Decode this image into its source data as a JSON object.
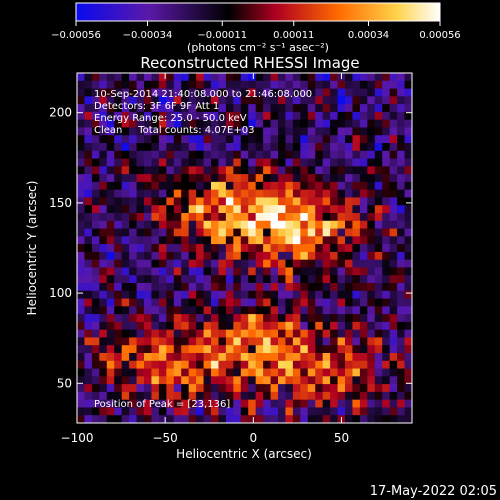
{
  "chart_data": {
    "type": "heatmap",
    "title": "Reconstructed RHESSI Image",
    "xlabel": "Heliocentric X (arcsec)",
    "ylabel": "Heliocentric Y (arcsec)",
    "xlim": [
      -100,
      90
    ],
    "ylim": [
      28,
      222
    ],
    "x_ticks": [
      -100,
      -50,
      0,
      50
    ],
    "y_ticks": [
      50,
      100,
      150,
      200
    ],
    "x_tick_labels": [
      "−100",
      "−50",
      "0",
      "50"
    ],
    "y_tick_labels": [
      "50",
      "100",
      "150",
      "200"
    ],
    "colorbar": {
      "range": [
        -0.00056,
        0.00056
      ],
      "ticks": [
        -0.00056,
        -0.00034,
        -0.00011,
        0.00011,
        0.00034,
        0.00056
      ],
      "tick_labels": [
        "−0.00056",
        "−0.00034",
        "−0.00011",
        "0.00011",
        "0.00034",
        "0.00056"
      ],
      "units_label": "(photons cm⁻² s⁻¹ asec⁻²)",
      "colormap": [
        "#0a0af0",
        "#5a18a8",
        "#000000",
        "#b00020",
        "#ff6a00",
        "#ffd24a",
        "#ffffff"
      ]
    },
    "annotations": [
      "10-Sep-2014 21:40:08.000 to 21:46:08.000",
      "Detectors: 3F 6F 9F  Att 1",
      "Energy Range: 25.0 - 50.0 keV",
      "Clean     Total counts: 4.07E+03"
    ],
    "peak_label": "Position of Peak = [23,136]",
    "peak": {
      "x": 23,
      "y": 136
    },
    "emission_regions": [
      {
        "x": 23,
        "y": 136,
        "strength": 1.0
      },
      {
        "x": -20,
        "y": 148,
        "strength": 0.7
      },
      {
        "x": 0,
        "y": 70,
        "strength": 0.75
      },
      {
        "x": -55,
        "y": 60,
        "strength": 0.6
      },
      {
        "x": 45,
        "y": 55,
        "strength": 0.55
      }
    ],
    "grid": false,
    "legend": "none"
  },
  "footer": {
    "timestamp": "17-May-2022 02:05"
  }
}
